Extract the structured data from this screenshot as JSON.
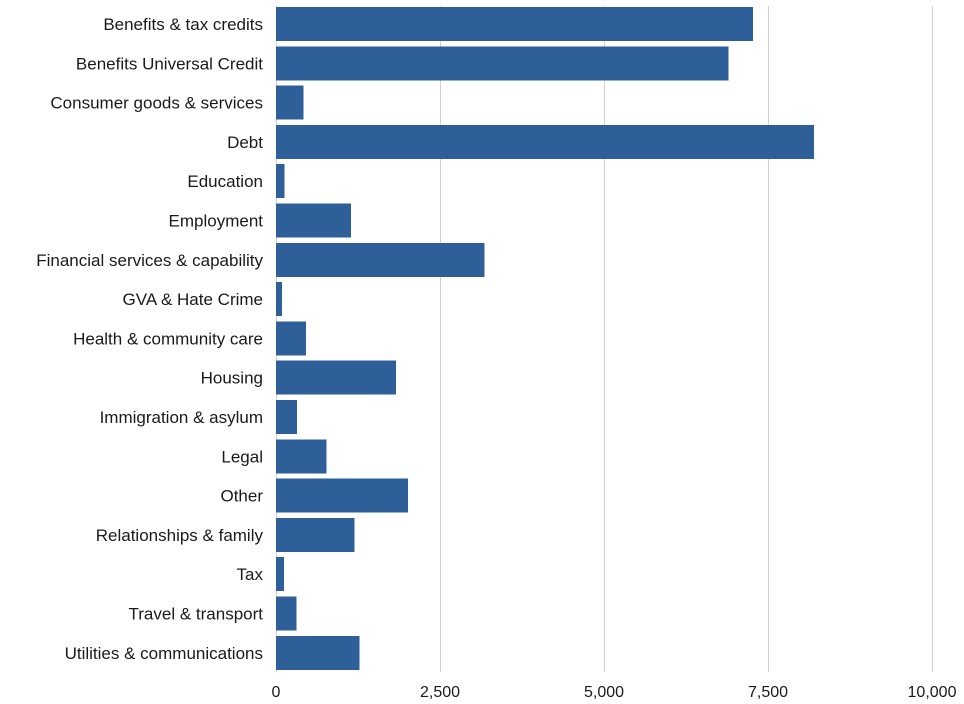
{
  "chart_data": {
    "type": "bar",
    "orientation": "horizontal",
    "categories": [
      "Benefits & tax credits",
      "Benefits Universal Credit",
      "Consumer goods & services",
      "Debt",
      "Education",
      "Employment",
      "Financial services & capability",
      "GVA & Hate Crime",
      "Health & community care",
      "Housing",
      "Immigration & asylum",
      "Legal",
      "Other",
      "Relationships & family",
      "Tax",
      "Travel & transport",
      "Utilities & communications"
    ],
    "values": [
      7270,
      6900,
      420,
      8200,
      130,
      1140,
      3180,
      90,
      460,
      1830,
      320,
      770,
      2010,
      1200,
      120,
      310,
      1270
    ],
    "xlim": [
      0,
      10000
    ],
    "xticks": [
      0,
      2500,
      5000,
      7500,
      10000
    ],
    "xtick_labels": [
      "0",
      "2,500",
      "5,000",
      "7,500",
      "10,000"
    ],
    "grid": "vertical",
    "bar_color": "#2e5f99",
    "grid_color": "#d0d0d0"
  }
}
